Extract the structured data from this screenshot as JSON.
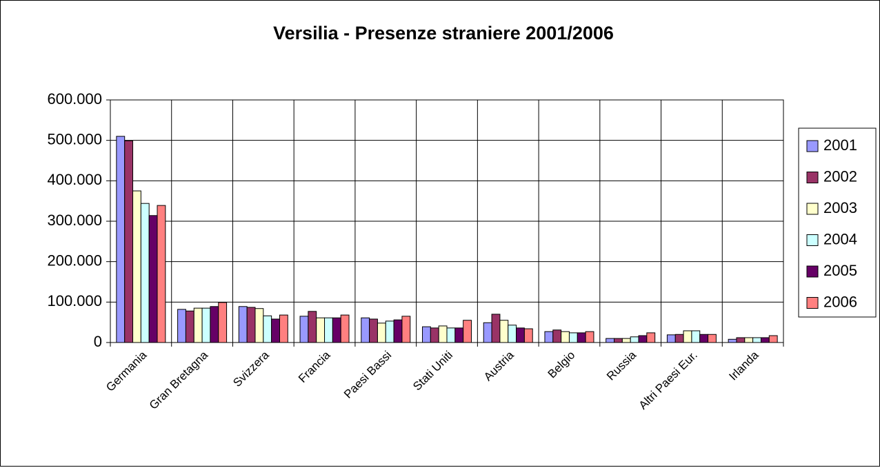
{
  "chart_data": {
    "type": "bar",
    "title": "Versilia - Presenze straniere 2001/2006",
    "categories": [
      "Germania",
      "Gran Bretagna",
      "Svizzera",
      "Francia",
      "Paesi Bassi",
      "Stati Uniti",
      "Austria",
      "Belgio",
      "Russia",
      "Altri Paesi Eur.",
      "Irlanda"
    ],
    "series": [
      {
        "name": "2001",
        "color": "#9999ff",
        "values": [
          510000,
          82000,
          89000,
          65000,
          61000,
          39000,
          49000,
          27000,
          10000,
          19000,
          8000
        ]
      },
      {
        "name": "2002",
        "color": "#993366",
        "values": [
          499000,
          78000,
          87000,
          77000,
          58000,
          36000,
          70000,
          31000,
          10000,
          20000,
          12000
        ]
      },
      {
        "name": "2003",
        "color": "#ffffcc",
        "values": [
          375000,
          85000,
          84000,
          61000,
          48000,
          41000,
          55000,
          27000,
          10000,
          29000,
          12000
        ]
      },
      {
        "name": "2004",
        "color": "#ccffff",
        "values": [
          344000,
          85000,
          66000,
          61000,
          53000,
          36000,
          43000,
          24000,
          14000,
          29000,
          12000
        ]
      },
      {
        "name": "2005",
        "color": "#660066",
        "values": [
          314000,
          89000,
          58000,
          61000,
          56000,
          36000,
          36000,
          24000,
          17000,
          20000,
          12000
        ]
      },
      {
        "name": "2006",
        "color": "#ff8080",
        "values": [
          339000,
          99000,
          68000,
          68000,
          65000,
          55000,
          34000,
          27000,
          24000,
          20000,
          17000
        ]
      }
    ],
    "ylim": [
      0,
      600000
    ],
    "yticks": [
      0,
      {
        "value": 100000,
        "label": "100.000"
      },
      {
        "value": 200000,
        "label": "200.000"
      },
      {
        "value": 300000,
        "label": "300.000"
      },
      {
        "value": 400000,
        "label": "400.000"
      },
      {
        "value": 500000,
        "label": "500.000"
      },
      {
        "value": 600000,
        "label": "600.000"
      }
    ],
    "grid": true,
    "legend": "right"
  }
}
